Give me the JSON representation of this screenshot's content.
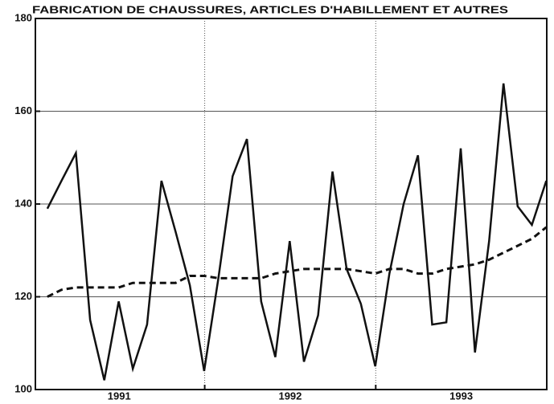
{
  "chart_data": {
    "type": "line",
    "title": "FABRICATION DE CHAUSSURES, ARTICLES D'HABILLEMENT ET AUTRES",
    "x": [
      1991,
      1991.083,
      1991.167,
      1991.25,
      1991.333,
      1991.417,
      1991.5,
      1991.583,
      1991.667,
      1991.75,
      1991.833,
      1991.917,
      1992,
      1992.083,
      1992.167,
      1992.25,
      1992.333,
      1992.417,
      1992.5,
      1992.583,
      1992.667,
      1992.75,
      1992.833,
      1992.917,
      1993,
      1993.083,
      1993.167,
      1993.25,
      1993.333,
      1993.417,
      1993.5,
      1993.583,
      1993.667,
      1993.75,
      1993.833,
      1993.917
    ],
    "series": [
      {
        "color": "#111111",
        "dash": false,
        "values": [
          139,
          145,
          151,
          115,
          102,
          119,
          104.5,
          114,
          145,
          134,
          122.5,
          104,
          124,
          146,
          154,
          119,
          107,
          132,
          106,
          116,
          147,
          126,
          118.5,
          105,
          125,
          140,
          150.5,
          114,
          114.5,
          152,
          108,
          132,
          166,
          139.5,
          135.5,
          145
        ]
      },
      {
        "color": "#111111",
        "dash": true,
        "values": [
          120,
          121.5,
          122,
          122,
          122,
          122,
          123,
          123,
          123,
          123,
          124.5,
          124.5,
          124,
          124,
          124,
          124,
          125,
          125.5,
          126,
          126,
          126,
          126,
          125.5,
          125,
          126,
          126,
          125,
          125,
          126,
          126.5,
          127,
          128,
          129.5,
          131,
          132.5,
          135
        ]
      }
    ],
    "xlim": [
      1990.93,
      1993.92
    ],
    "xticks": [
      {
        "value": 1991.42,
        "label": "1991"
      },
      {
        "value": 1992.42,
        "label": "1992"
      },
      {
        "value": 1993.42,
        "label": "1993"
      }
    ],
    "xgrid": [
      1991.92,
      1992.92
    ],
    "ylim": [
      100,
      180
    ],
    "yticks": [
      100,
      120,
      140,
      160,
      180
    ],
    "grid": true
  }
}
